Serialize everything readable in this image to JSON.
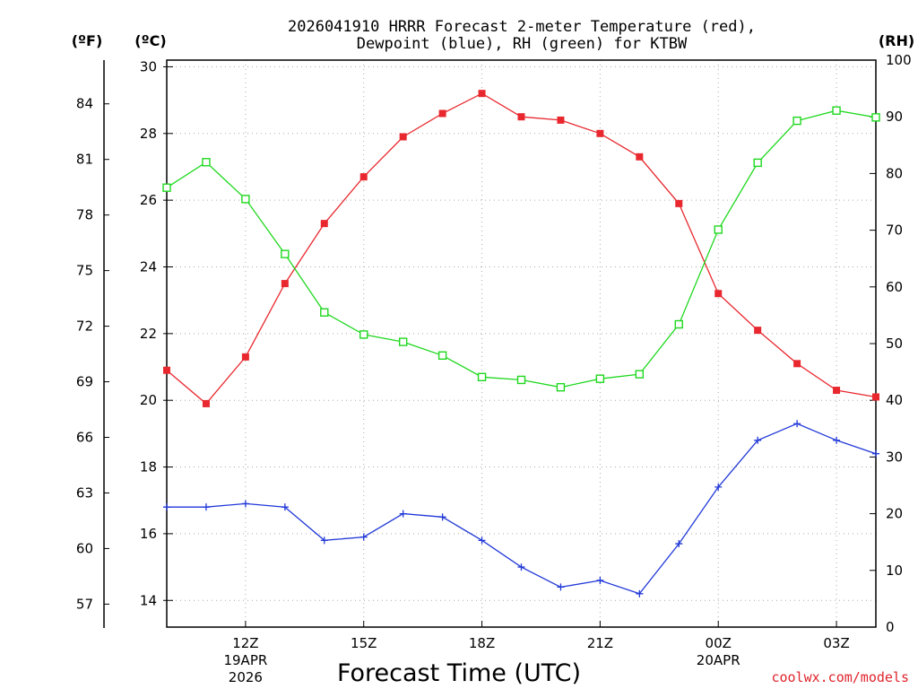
{
  "chart_data": {
    "type": "line",
    "title_line1": "2026041910 HRRR Forecast 2-meter Temperature (red),",
    "title_line2": "Dewpoint (blue), RH (green) for KTBW",
    "xlabel": "Forecast Time (UTC)",
    "credit": "coolwx.com/models",
    "units": {
      "fahrenheit": "(ºF)",
      "celsius": "(ºC)",
      "rh": "(RH)"
    },
    "x_range": [
      10,
      28
    ],
    "x_ticks": [
      {
        "x": 12,
        "label": "12Z",
        "sub1": "19APR",
        "sub2": "2026"
      },
      {
        "x": 15,
        "label": "15Z",
        "sub1": "",
        "sub2": ""
      },
      {
        "x": 18,
        "label": "18Z",
        "sub1": "",
        "sub2": ""
      },
      {
        "x": 21,
        "label": "21Z",
        "sub1": "",
        "sub2": ""
      },
      {
        "x": 24,
        "label": "00Z",
        "sub1": "20APR",
        "sub2": ""
      },
      {
        "x": 27,
        "label": "03Z",
        "sub1": "",
        "sub2": ""
      }
    ],
    "celsius_range": [
      13.2,
      30.2
    ],
    "celsius_ticks": [
      14,
      16,
      18,
      20,
      22,
      24,
      26,
      28,
      30
    ],
    "fahrenheit_ticks": [
      57,
      60,
      63,
      66,
      69,
      72,
      75,
      78,
      81,
      84
    ],
    "rh_range": [
      0,
      100
    ],
    "rh_ticks": [
      0,
      10,
      20,
      30,
      40,
      50,
      60,
      70,
      80,
      90,
      100
    ],
    "colors": {
      "temperature": "#e8282e",
      "dewpoint": "#2138d8",
      "rh": "#1fd81f",
      "grid": "#aaaaaa"
    },
    "series": [
      {
        "name": "Temperature",
        "axis": "celsius",
        "marker": "filled-square",
        "x": [
          10,
          11,
          12,
          13,
          14,
          15,
          16,
          17,
          18,
          19,
          20,
          21,
          22,
          23,
          24,
          25,
          26,
          27,
          28
        ],
        "values": [
          20.9,
          19.9,
          21.3,
          23.5,
          25.3,
          26.7,
          27.9,
          28.6,
          29.2,
          28.5,
          28.4,
          28.0,
          27.3,
          25.9,
          23.2,
          22.1,
          21.1,
          20.3,
          20.1
        ]
      },
      {
        "name": "Dewpoint",
        "axis": "celsius",
        "marker": "plus",
        "x": [
          10,
          11,
          12,
          13,
          14,
          15,
          16,
          17,
          18,
          19,
          20,
          21,
          22,
          23,
          24,
          25,
          26,
          27,
          28
        ],
        "values": [
          16.8,
          16.8,
          16.9,
          16.8,
          15.8,
          15.9,
          16.6,
          16.5,
          15.8,
          15.0,
          14.4,
          14.6,
          14.2,
          15.7,
          17.4,
          18.8,
          19.3,
          18.8,
          18.4
        ]
      },
      {
        "name": "RH",
        "axis": "rh",
        "marker": "open-square",
        "x": [
          10,
          11,
          12,
          13,
          14,
          15,
          16,
          17,
          18,
          19,
          20,
          21,
          22,
          23,
          24,
          25,
          26,
          27,
          28
        ],
        "values": [
          77.5,
          82,
          75.5,
          65.8,
          55.5,
          51.6,
          50.3,
          47.9,
          44.1,
          43.6,
          42.3,
          43.8,
          44.6,
          53.4,
          70.1,
          81.9,
          89.3,
          91.1,
          89.9
        ]
      }
    ]
  }
}
